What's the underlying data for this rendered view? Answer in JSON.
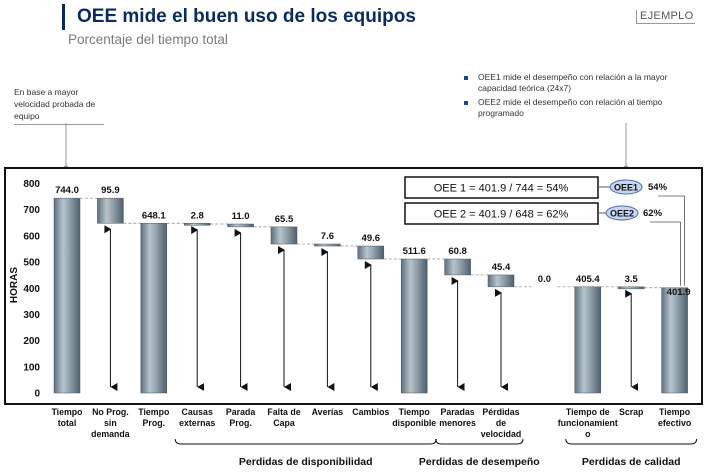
{
  "header": {
    "title": "OEE mide el buen uso de los equipos",
    "subtitle": "Porcentaje del tiempo total",
    "badge": "EJEMPLO"
  },
  "notes": {
    "left": "En base a mayor velocidad probada de equipo",
    "right": [
      "OEE1 mide el desempeño con relación a la mayor capacidad teórica (24x7)",
      "OEE2 mide el desempeño con relación al tiempo programado"
    ]
  },
  "oee": {
    "formula1": "OEE 1 = 401.9 / 744 = 54%",
    "formula2": "OEE 2 = 401.9 / 648 = 62%",
    "label1": "OEE1",
    "label2": "OEE2",
    "pct1": "54%",
    "pct2": "62%"
  },
  "colors": {
    "bar": "#8a9aa6",
    "accent": "#0b2b5e",
    "oval": "#c6d6f2"
  },
  "chart_data": {
    "type": "bar",
    "subtype": "waterfall",
    "ylabel": "HORAS",
    "ylim": [
      0,
      800
    ],
    "yticks": [
      "0",
      "100",
      "200",
      "300",
      "400",
      "500",
      "600",
      "700",
      "800"
    ],
    "categories": [
      [
        "Tiempo",
        "total"
      ],
      [
        "No Prog.",
        "sin",
        "demanda"
      ],
      [
        "Tiempo",
        "Prog."
      ],
      [
        "Causas",
        "externas"
      ],
      [
        "Parada",
        "Prog."
      ],
      [
        "Falta de",
        "Capa"
      ],
      [
        "Averías"
      ],
      [
        "Cambios"
      ],
      [
        "Tiempo",
        "disponible"
      ],
      [
        "Paradas",
        "menores"
      ],
      [
        "Pérdidas",
        "de",
        "velocidad"
      ],
      [],
      [
        "Tiempo de",
        "funcionamient",
        "o"
      ],
      [
        "Scrap"
      ],
      [
        "Tiempo",
        "efectivo"
      ]
    ],
    "bars": [
      {
        "label": "744.0",
        "base": 0,
        "value": 744.0,
        "kind": "total"
      },
      {
        "label": "95.9",
        "base": 648.1,
        "value": 95.9,
        "kind": "loss"
      },
      {
        "label": "648.1",
        "base": 0,
        "value": 648.1,
        "kind": "total"
      },
      {
        "label": "2.8",
        "base": 645.3,
        "value": 2.8,
        "kind": "loss"
      },
      {
        "label": "11.0",
        "base": 634.3,
        "value": 11.0,
        "kind": "loss"
      },
      {
        "label": "65.5",
        "base": 568.8,
        "value": 65.5,
        "kind": "loss"
      },
      {
        "label": "7.6",
        "base": 561.2,
        "value": 7.6,
        "kind": "loss"
      },
      {
        "label": "49.6",
        "base": 511.6,
        "value": 49.6,
        "kind": "loss"
      },
      {
        "label": "511.6",
        "base": 0,
        "value": 511.6,
        "kind": "total"
      },
      {
        "label": "60.8",
        "base": 450.8,
        "value": 60.8,
        "kind": "loss"
      },
      {
        "label": "45.4",
        "base": 405.4,
        "value": 45.4,
        "kind": "loss"
      },
      {
        "label": "0.0",
        "base": 405.4,
        "value": 0,
        "kind": "loss"
      },
      {
        "label": "405.4",
        "base": 0,
        "value": 405.4,
        "kind": "total"
      },
      {
        "label": "3.5",
        "base": 401.9,
        "value": 3.5,
        "kind": "loss"
      },
      {
        "label": "401.9",
        "base": 0,
        "value": 401.9,
        "kind": "total"
      }
    ],
    "groups": [
      {
        "label": "Perdidas de disponibilidad",
        "from": 3,
        "to": 8
      },
      {
        "label": "Perdidas de desempeño",
        "from": 9,
        "to": 10
      },
      {
        "label": "Perdidas de calidad",
        "from": 12,
        "to": 14
      }
    ]
  }
}
